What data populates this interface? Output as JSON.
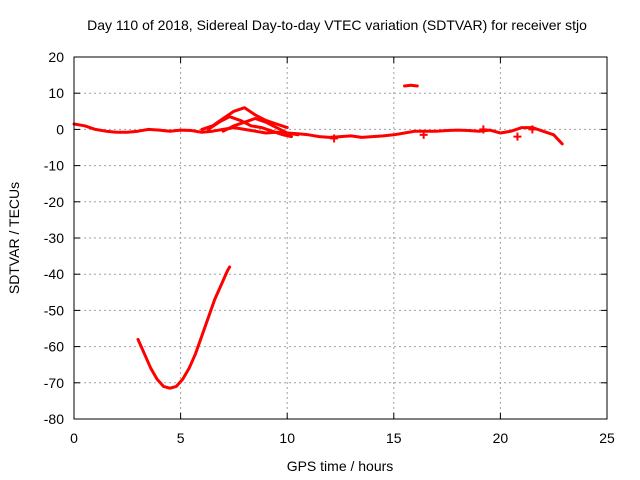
{
  "chart_data": {
    "type": "scatter",
    "title": "Day 110 of 2018, Sidereal Day-to-day VTEC variation (SDTVAR) for receiver stjo",
    "xlabel": "GPS time / hours",
    "ylabel": "SDTVAR / TECUs",
    "xlim": [
      0,
      25
    ],
    "ylim": [
      -80,
      20
    ],
    "xticks": [
      0,
      5,
      10,
      15,
      20,
      25
    ],
    "yticks": [
      20,
      10,
      0,
      -10,
      -20,
      -30,
      -40,
      -50,
      -60,
      -70,
      -80
    ],
    "grid": true,
    "marker_color": "#ff0000",
    "series": [
      {
        "name": "main-trace",
        "points": [
          [
            0,
            1.5
          ],
          [
            0.5,
            1
          ],
          [
            1,
            0
          ],
          [
            1.5,
            -0.5
          ],
          [
            2,
            -0.8
          ],
          [
            2.5,
            -0.8
          ],
          [
            3,
            -0.5
          ],
          [
            3.5,
            0
          ],
          [
            4,
            -0.2
          ],
          [
            4.5,
            -0.5
          ],
          [
            5,
            -0.2
          ],
          [
            5.5,
            -0.3
          ],
          [
            6,
            -0.8
          ],
          [
            6.5,
            -0.5
          ],
          [
            7,
            0
          ],
          [
            7.5,
            0.5
          ],
          [
            8,
            0
          ],
          [
            8.5,
            -0.5
          ],
          [
            9,
            -1
          ],
          [
            9.5,
            -0.8
          ],
          [
            10,
            -1
          ],
          [
            10.5,
            -1.2
          ],
          [
            11,
            -1.5
          ],
          [
            11.5,
            -2
          ],
          [
            12,
            -2.2
          ],
          [
            12.5,
            -2
          ],
          [
            13,
            -1.8
          ],
          [
            13.5,
            -2.2
          ],
          [
            14,
            -2
          ],
          [
            14.5,
            -1.8
          ],
          [
            15,
            -1.5
          ],
          [
            15.5,
            -1
          ],
          [
            16,
            -0.5
          ],
          [
            16.5,
            -0.5
          ],
          [
            17,
            -0.5
          ],
          [
            17.5,
            -0.3
          ],
          [
            18,
            -0.2
          ],
          [
            18.5,
            -0.3
          ],
          [
            19,
            -0.5
          ],
          [
            19.5,
            -0.2
          ],
          [
            20,
            -1
          ],
          [
            20.5,
            -0.5
          ],
          [
            21,
            0.5
          ],
          [
            21.5,
            0.5
          ],
          [
            22,
            -0.5
          ],
          [
            22.5,
            -1.5
          ],
          [
            22.9,
            -4
          ]
        ]
      },
      {
        "name": "upper-trace",
        "points": [
          [
            6,
            0
          ],
          [
            6.5,
            1
          ],
          [
            7,
            3
          ],
          [
            7.5,
            5
          ],
          [
            8,
            6
          ],
          [
            8.5,
            4
          ],
          [
            9,
            2.5
          ],
          [
            9.5,
            1.5
          ],
          [
            10,
            0.5
          ]
        ]
      },
      {
        "name": "middle-trace",
        "points": [
          [
            6.3,
            0
          ],
          [
            6.8,
            2
          ],
          [
            7.3,
            3.5
          ],
          [
            7.8,
            2.5
          ],
          [
            8.3,
            1
          ],
          [
            8.8,
            0.5
          ],
          [
            9.3,
            -0.5
          ],
          [
            9.8,
            -1.5
          ],
          [
            10.2,
            -2
          ]
        ]
      },
      {
        "name": "lower-trace",
        "points": [
          [
            7,
            -0.5
          ],
          [
            7.5,
            1
          ],
          [
            8,
            2
          ],
          [
            8.5,
            3
          ],
          [
            9,
            2
          ],
          [
            9.5,
            0.5
          ],
          [
            10,
            -1
          ],
          [
            10.5,
            -1.5
          ]
        ]
      },
      {
        "name": "isolated-segment",
        "points": [
          [
            15.5,
            12
          ],
          [
            15.8,
            12.2
          ],
          [
            16.1,
            12
          ]
        ]
      },
      {
        "name": "dip-trace",
        "points": [
          [
            3,
            -58
          ],
          [
            3.3,
            -62
          ],
          [
            3.6,
            -66
          ],
          [
            3.9,
            -69
          ],
          [
            4.2,
            -71
          ],
          [
            4.5,
            -71.5
          ],
          [
            4.8,
            -71
          ],
          [
            5.1,
            -69
          ],
          [
            5.4,
            -66
          ],
          [
            5.7,
            -62
          ],
          [
            6,
            -57
          ],
          [
            6.3,
            -52
          ],
          [
            6.6,
            -47
          ],
          [
            6.9,
            -43
          ],
          [
            7.2,
            -39
          ],
          [
            7.3,
            -38
          ]
        ]
      }
    ],
    "markers": [
      [
        20.8,
        -2
      ],
      [
        21.5,
        0
      ],
      [
        19.2,
        0
      ],
      [
        16.4,
        -1.5
      ],
      [
        12.2,
        -2.5
      ]
    ]
  }
}
